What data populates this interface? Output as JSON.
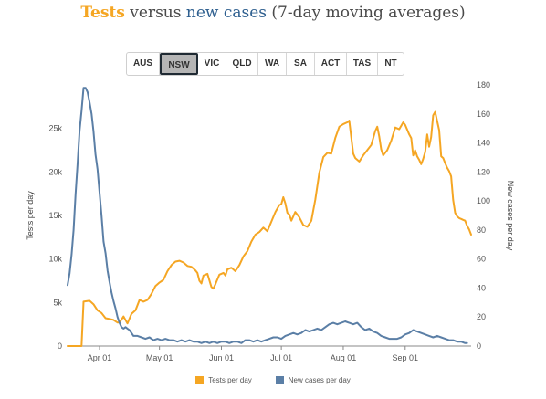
{
  "title": {
    "part1": "Tests",
    "part2": " versus ",
    "part3": "new cases",
    "part4": " (7-day moving averages)"
  },
  "tabs": {
    "active": "NSW",
    "items": [
      {
        "label": "AUS"
      },
      {
        "label": "NSW"
      },
      {
        "label": "VIC"
      },
      {
        "label": "QLD"
      },
      {
        "label": "WA"
      },
      {
        "label": "SA"
      },
      {
        "label": "ACT"
      },
      {
        "label": "TAS"
      },
      {
        "label": "NT"
      }
    ]
  },
  "legend": {
    "tests": "Tests per day",
    "cases": "New cases per day"
  },
  "colors": {
    "tests": "#f5a623",
    "cases": "#5b7fa6"
  },
  "chart_data": {
    "type": "line",
    "x_ticks": [
      "Apr 01",
      "May 01",
      "Jun 01",
      "Jul 01",
      "Aug 01",
      "Sep 01"
    ],
    "x_tick_days": [
      16,
      46,
      77,
      107,
      138,
      169
    ],
    "xlim_days": [
      0,
      190
    ],
    "x_start_label": "",
    "ylabel_left": "Tests per day",
    "ylabel_right": "New cases per day",
    "y_left_ticks": [
      "0",
      "5k",
      "10k",
      "15k",
      "20k",
      "25k"
    ],
    "y_left_tick_values": [
      0,
      5000,
      10000,
      15000,
      20000,
      25000
    ],
    "y_left_lim": [
      0,
      30000
    ],
    "y_right_ticks": [
      "0",
      "20",
      "40",
      "60",
      "80",
      "100",
      "120",
      "140",
      "160",
      "180"
    ],
    "y_right_tick_values": [
      0,
      20,
      40,
      60,
      80,
      100,
      120,
      140,
      160,
      180
    ],
    "y_right_lim": [
      0,
      180
    ],
    "series": [
      {
        "name": "Tests per day",
        "axis": "left",
        "points": [
          [
            0,
            0
          ],
          [
            7,
            0
          ],
          [
            8,
            5100
          ],
          [
            11,
            5200
          ],
          [
            13,
            4800
          ],
          [
            15,
            4100
          ],
          [
            17,
            3800
          ],
          [
            19,
            3200
          ],
          [
            21,
            3100
          ],
          [
            23,
            3000
          ],
          [
            25,
            2700
          ],
          [
            26,
            2700
          ],
          [
            28,
            3400
          ],
          [
            30,
            2600
          ],
          [
            32,
            3700
          ],
          [
            34,
            4100
          ],
          [
            36,
            5300
          ],
          [
            38,
            5100
          ],
          [
            40,
            5300
          ],
          [
            42,
            6000
          ],
          [
            44,
            6900
          ],
          [
            46,
            7300
          ],
          [
            48,
            7600
          ],
          [
            50,
            8600
          ],
          [
            52,
            9300
          ],
          [
            54,
            9700
          ],
          [
            56,
            9800
          ],
          [
            58,
            9600
          ],
          [
            60,
            9200
          ],
          [
            62,
            9100
          ],
          [
            64,
            8700
          ],
          [
            65,
            8400
          ],
          [
            66,
            7500
          ],
          [
            67,
            7200
          ],
          [
            68,
            8100
          ],
          [
            70,
            8300
          ],
          [
            72,
            6800
          ],
          [
            73,
            6600
          ],
          [
            74,
            7100
          ],
          [
            76,
            8200
          ],
          [
            78,
            8400
          ],
          [
            79,
            8100
          ],
          [
            80,
            8800
          ],
          [
            82,
            9000
          ],
          [
            84,
            8600
          ],
          [
            86,
            9300
          ],
          [
            88,
            10300
          ],
          [
            90,
            10900
          ],
          [
            92,
            12000
          ],
          [
            94,
            12800
          ],
          [
            96,
            13100
          ],
          [
            98,
            13600
          ],
          [
            100,
            13200
          ],
          [
            102,
            14300
          ],
          [
            104,
            15400
          ],
          [
            106,
            16200
          ],
          [
            107,
            16300
          ],
          [
            108,
            17100
          ],
          [
            109,
            16400
          ],
          [
            110,
            15300
          ],
          [
            111,
            15100
          ],
          [
            112,
            14400
          ],
          [
            114,
            15400
          ],
          [
            116,
            14800
          ],
          [
            118,
            13900
          ],
          [
            120,
            13700
          ],
          [
            122,
            14400
          ],
          [
            124,
            16800
          ],
          [
            126,
            19900
          ],
          [
            128,
            21700
          ],
          [
            130,
            22200
          ],
          [
            132,
            22100
          ],
          [
            134,
            23900
          ],
          [
            136,
            25200
          ],
          [
            138,
            25500
          ],
          [
            140,
            25700
          ],
          [
            141,
            25900
          ],
          [
            142,
            24000
          ],
          [
            143,
            22100
          ],
          [
            144,
            21600
          ],
          [
            146,
            21200
          ],
          [
            148,
            21900
          ],
          [
            150,
            22500
          ],
          [
            152,
            23100
          ],
          [
            154,
            24700
          ],
          [
            155,
            25200
          ],
          [
            156,
            24100
          ],
          [
            157,
            22600
          ],
          [
            158,
            21900
          ],
          [
            160,
            22500
          ],
          [
            162,
            23600
          ],
          [
            164,
            25100
          ],
          [
            166,
            24900
          ],
          [
            168,
            25700
          ],
          [
            169,
            25400
          ],
          [
            171,
            24300
          ],
          [
            172,
            23900
          ],
          [
            173,
            21900
          ],
          [
            174,
            22500
          ],
          [
            175,
            21800
          ],
          [
            176,
            21400
          ],
          [
            177,
            20900
          ],
          [
            178,
            21500
          ],
          [
            179,
            22300
          ],
          [
            180,
            24300
          ],
          [
            181,
            22900
          ],
          [
            182,
            24000
          ],
          [
            183,
            26500
          ],
          [
            184,
            26900
          ],
          [
            186,
            24800
          ],
          [
            187,
            21800
          ],
          [
            188,
            21600
          ],
          [
            189,
            21000
          ],
          [
            190,
            20500
          ],
          [
            191,
            20100
          ],
          [
            192,
            19500
          ],
          [
            193,
            16800
          ],
          [
            194,
            15300
          ],
          [
            195,
            14900
          ],
          [
            196,
            14700
          ],
          [
            197,
            14600
          ],
          [
            198,
            14500
          ],
          [
            199,
            14400
          ],
          [
            200,
            13800
          ],
          [
            201,
            13400
          ],
          [
            202,
            12800
          ]
        ]
      },
      {
        "name": "New cases per day",
        "axis": "right",
        "points": [
          [
            0,
            42
          ],
          [
            1,
            50
          ],
          [
            2,
            63
          ],
          [
            3,
            80
          ],
          [
            4,
            105
          ],
          [
            5,
            125
          ],
          [
            6,
            148
          ],
          [
            7,
            162
          ],
          [
            8,
            178
          ],
          [
            9,
            178
          ],
          [
            10,
            175
          ],
          [
            11,
            168
          ],
          [
            12,
            160
          ],
          [
            13,
            148
          ],
          [
            14,
            132
          ],
          [
            15,
            122
          ],
          [
            16,
            106
          ],
          [
            17,
            90
          ],
          [
            18,
            72
          ],
          [
            19,
            64
          ],
          [
            20,
            52
          ],
          [
            21,
            44
          ],
          [
            22,
            37
          ],
          [
            23,
            31
          ],
          [
            24,
            26
          ],
          [
            25,
            20
          ],
          [
            26,
            16
          ],
          [
            27,
            13
          ],
          [
            28,
            12
          ],
          [
            29,
            13
          ],
          [
            30,
            12
          ],
          [
            31,
            11
          ],
          [
            32,
            9
          ],
          [
            33,
            7
          ],
          [
            35,
            7
          ],
          [
            37,
            6
          ],
          [
            39,
            5
          ],
          [
            41,
            6
          ],
          [
            43,
            4
          ],
          [
            45,
            5
          ],
          [
            47,
            4
          ],
          [
            49,
            5
          ],
          [
            51,
            4
          ],
          [
            53,
            4
          ],
          [
            55,
            3
          ],
          [
            57,
            4
          ],
          [
            59,
            3
          ],
          [
            61,
            4
          ],
          [
            63,
            3
          ],
          [
            65,
            3
          ],
          [
            67,
            2
          ],
          [
            69,
            3
          ],
          [
            71,
            2
          ],
          [
            73,
            3
          ],
          [
            75,
            2
          ],
          [
            77,
            3
          ],
          [
            79,
            3
          ],
          [
            81,
            2
          ],
          [
            83,
            3
          ],
          [
            85,
            3
          ],
          [
            87,
            2
          ],
          [
            89,
            4
          ],
          [
            91,
            4
          ],
          [
            93,
            3
          ],
          [
            95,
            4
          ],
          [
            97,
            3
          ],
          [
            99,
            4
          ],
          [
            101,
            5
          ],
          [
            103,
            6
          ],
          [
            105,
            6
          ],
          [
            107,
            5
          ],
          [
            109,
            7
          ],
          [
            111,
            8
          ],
          [
            113,
            9
          ],
          [
            115,
            8
          ],
          [
            117,
            9
          ],
          [
            119,
            11
          ],
          [
            121,
            10
          ],
          [
            123,
            11
          ],
          [
            125,
            12
          ],
          [
            127,
            11
          ],
          [
            129,
            13
          ],
          [
            131,
            15
          ],
          [
            133,
            16
          ],
          [
            135,
            15
          ],
          [
            137,
            16
          ],
          [
            139,
            17
          ],
          [
            141,
            16
          ],
          [
            143,
            15
          ],
          [
            145,
            16
          ],
          [
            147,
            13
          ],
          [
            149,
            11
          ],
          [
            151,
            12
          ],
          [
            153,
            10
          ],
          [
            155,
            9
          ],
          [
            157,
            7
          ],
          [
            159,
            6
          ],
          [
            161,
            5
          ],
          [
            163,
            5
          ],
          [
            165,
            5
          ],
          [
            167,
            6
          ],
          [
            169,
            8
          ],
          [
            171,
            9
          ],
          [
            173,
            11
          ],
          [
            175,
            10
          ],
          [
            177,
            9
          ],
          [
            179,
            8
          ],
          [
            181,
            7
          ],
          [
            183,
            6
          ],
          [
            185,
            7
          ],
          [
            187,
            6
          ],
          [
            189,
            5
          ],
          [
            191,
            4
          ],
          [
            193,
            4
          ],
          [
            195,
            3
          ],
          [
            197,
            3
          ],
          [
            199,
            2
          ],
          [
            200,
            2
          ]
        ]
      }
    ]
  }
}
